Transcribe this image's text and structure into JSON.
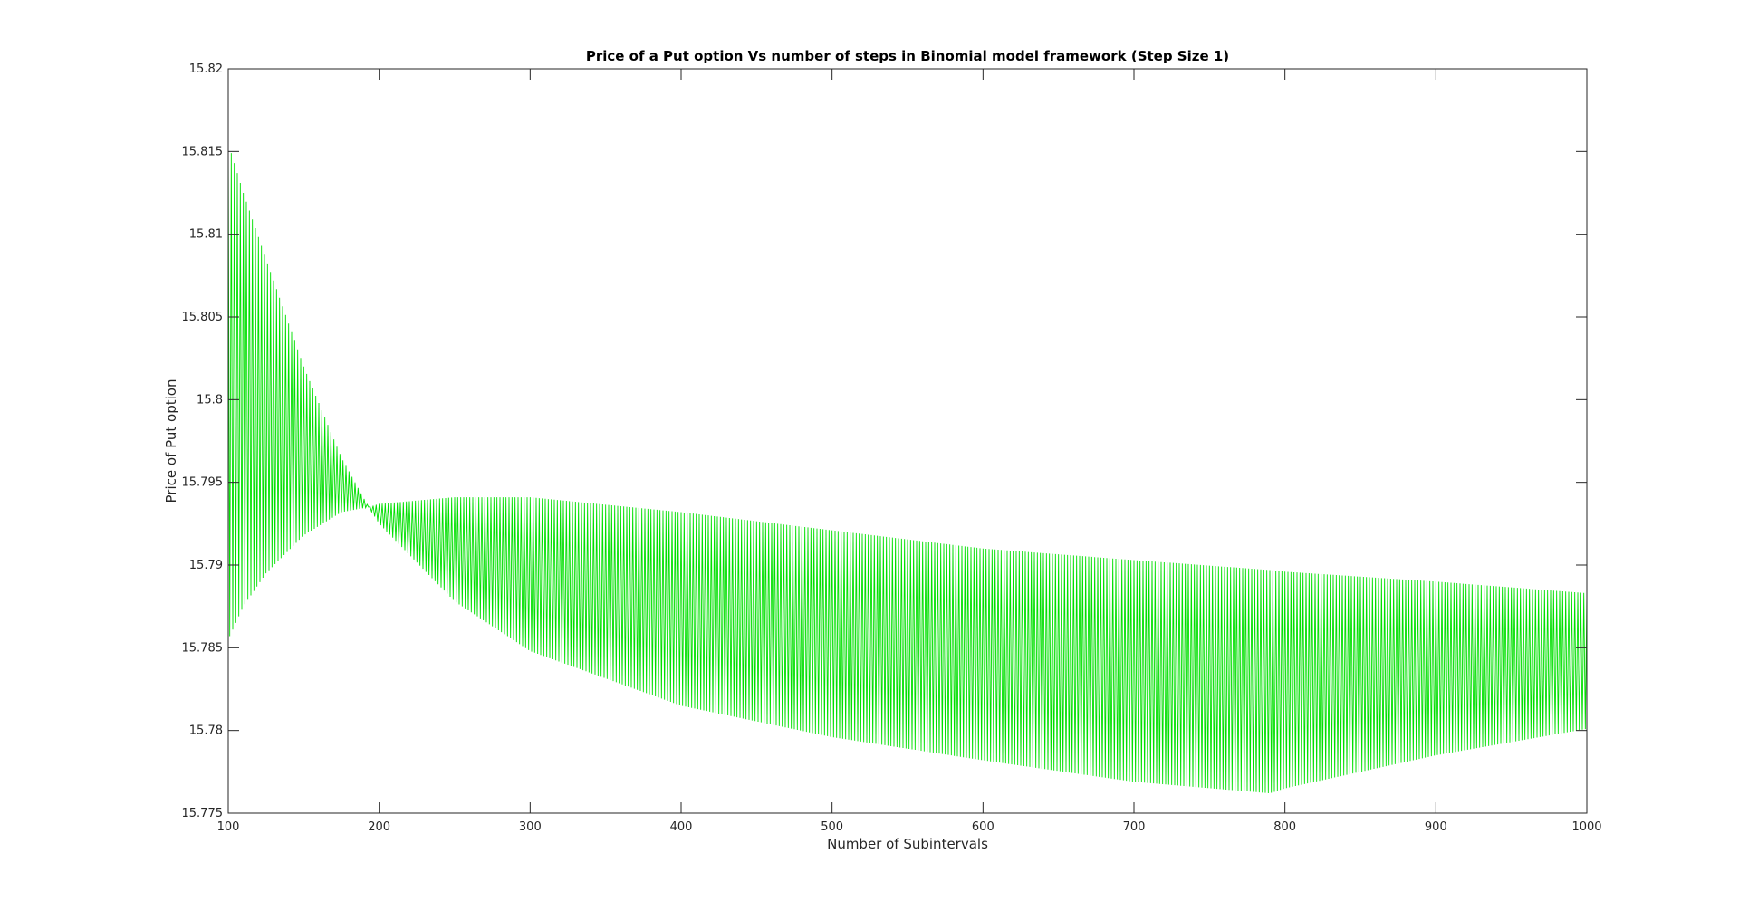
{
  "chart_data": {
    "type": "line",
    "title": "Price of a Put option Vs number of steps in Binomial model framework (Step Size 1)",
    "xlabel": "Number of Subintervals",
    "ylabel": "Price of Put option",
    "xlim": [
      100,
      1000
    ],
    "ylim": [
      15.775,
      15.82
    ],
    "x_ticks": [
      100,
      200,
      300,
      400,
      500,
      600,
      700,
      800,
      900,
      1000
    ],
    "x_tick_labels": [
      "100",
      "200",
      "300",
      "400",
      "500",
      "600",
      "700",
      "800",
      "900",
      "1000"
    ],
    "y_ticks": [
      15.775,
      15.78,
      15.785,
      15.79,
      15.795,
      15.8,
      15.805,
      15.81,
      15.815,
      15.82
    ],
    "y_tick_labels": [
      "15.775",
      "15.78",
      "15.785",
      "15.79",
      "15.795",
      "15.8",
      "15.805",
      "15.81",
      "15.815",
      "15.82"
    ],
    "grid": false,
    "line_color": "#00e000",
    "series": [
      {
        "description_of_shape": "oscillating sawtooth between two envelopes",
        "envelope_points": {
          "x": [
            100,
            110,
            125,
            150,
            175,
            193,
            200,
            250,
            300,
            400,
            500,
            600,
            700,
            790,
            800,
            900,
            1000
          ],
          "upper": [
            15.8155,
            15.8125,
            15.8085,
            15.802,
            15.7965,
            15.7935,
            15.7937,
            15.7941,
            15.7941,
            15.7932,
            15.7921,
            15.791,
            15.7903,
            15.7897,
            15.7896,
            15.789,
            15.7883
          ],
          "lower": [
            15.7855,
            15.7875,
            15.7895,
            15.7918,
            15.7932,
            15.7935,
            15.7925,
            15.7878,
            15.7848,
            15.7815,
            15.7796,
            15.7782,
            15.7769,
            15.7762,
            15.7765,
            15.7785,
            15.7801
          ]
        }
      }
    ]
  }
}
